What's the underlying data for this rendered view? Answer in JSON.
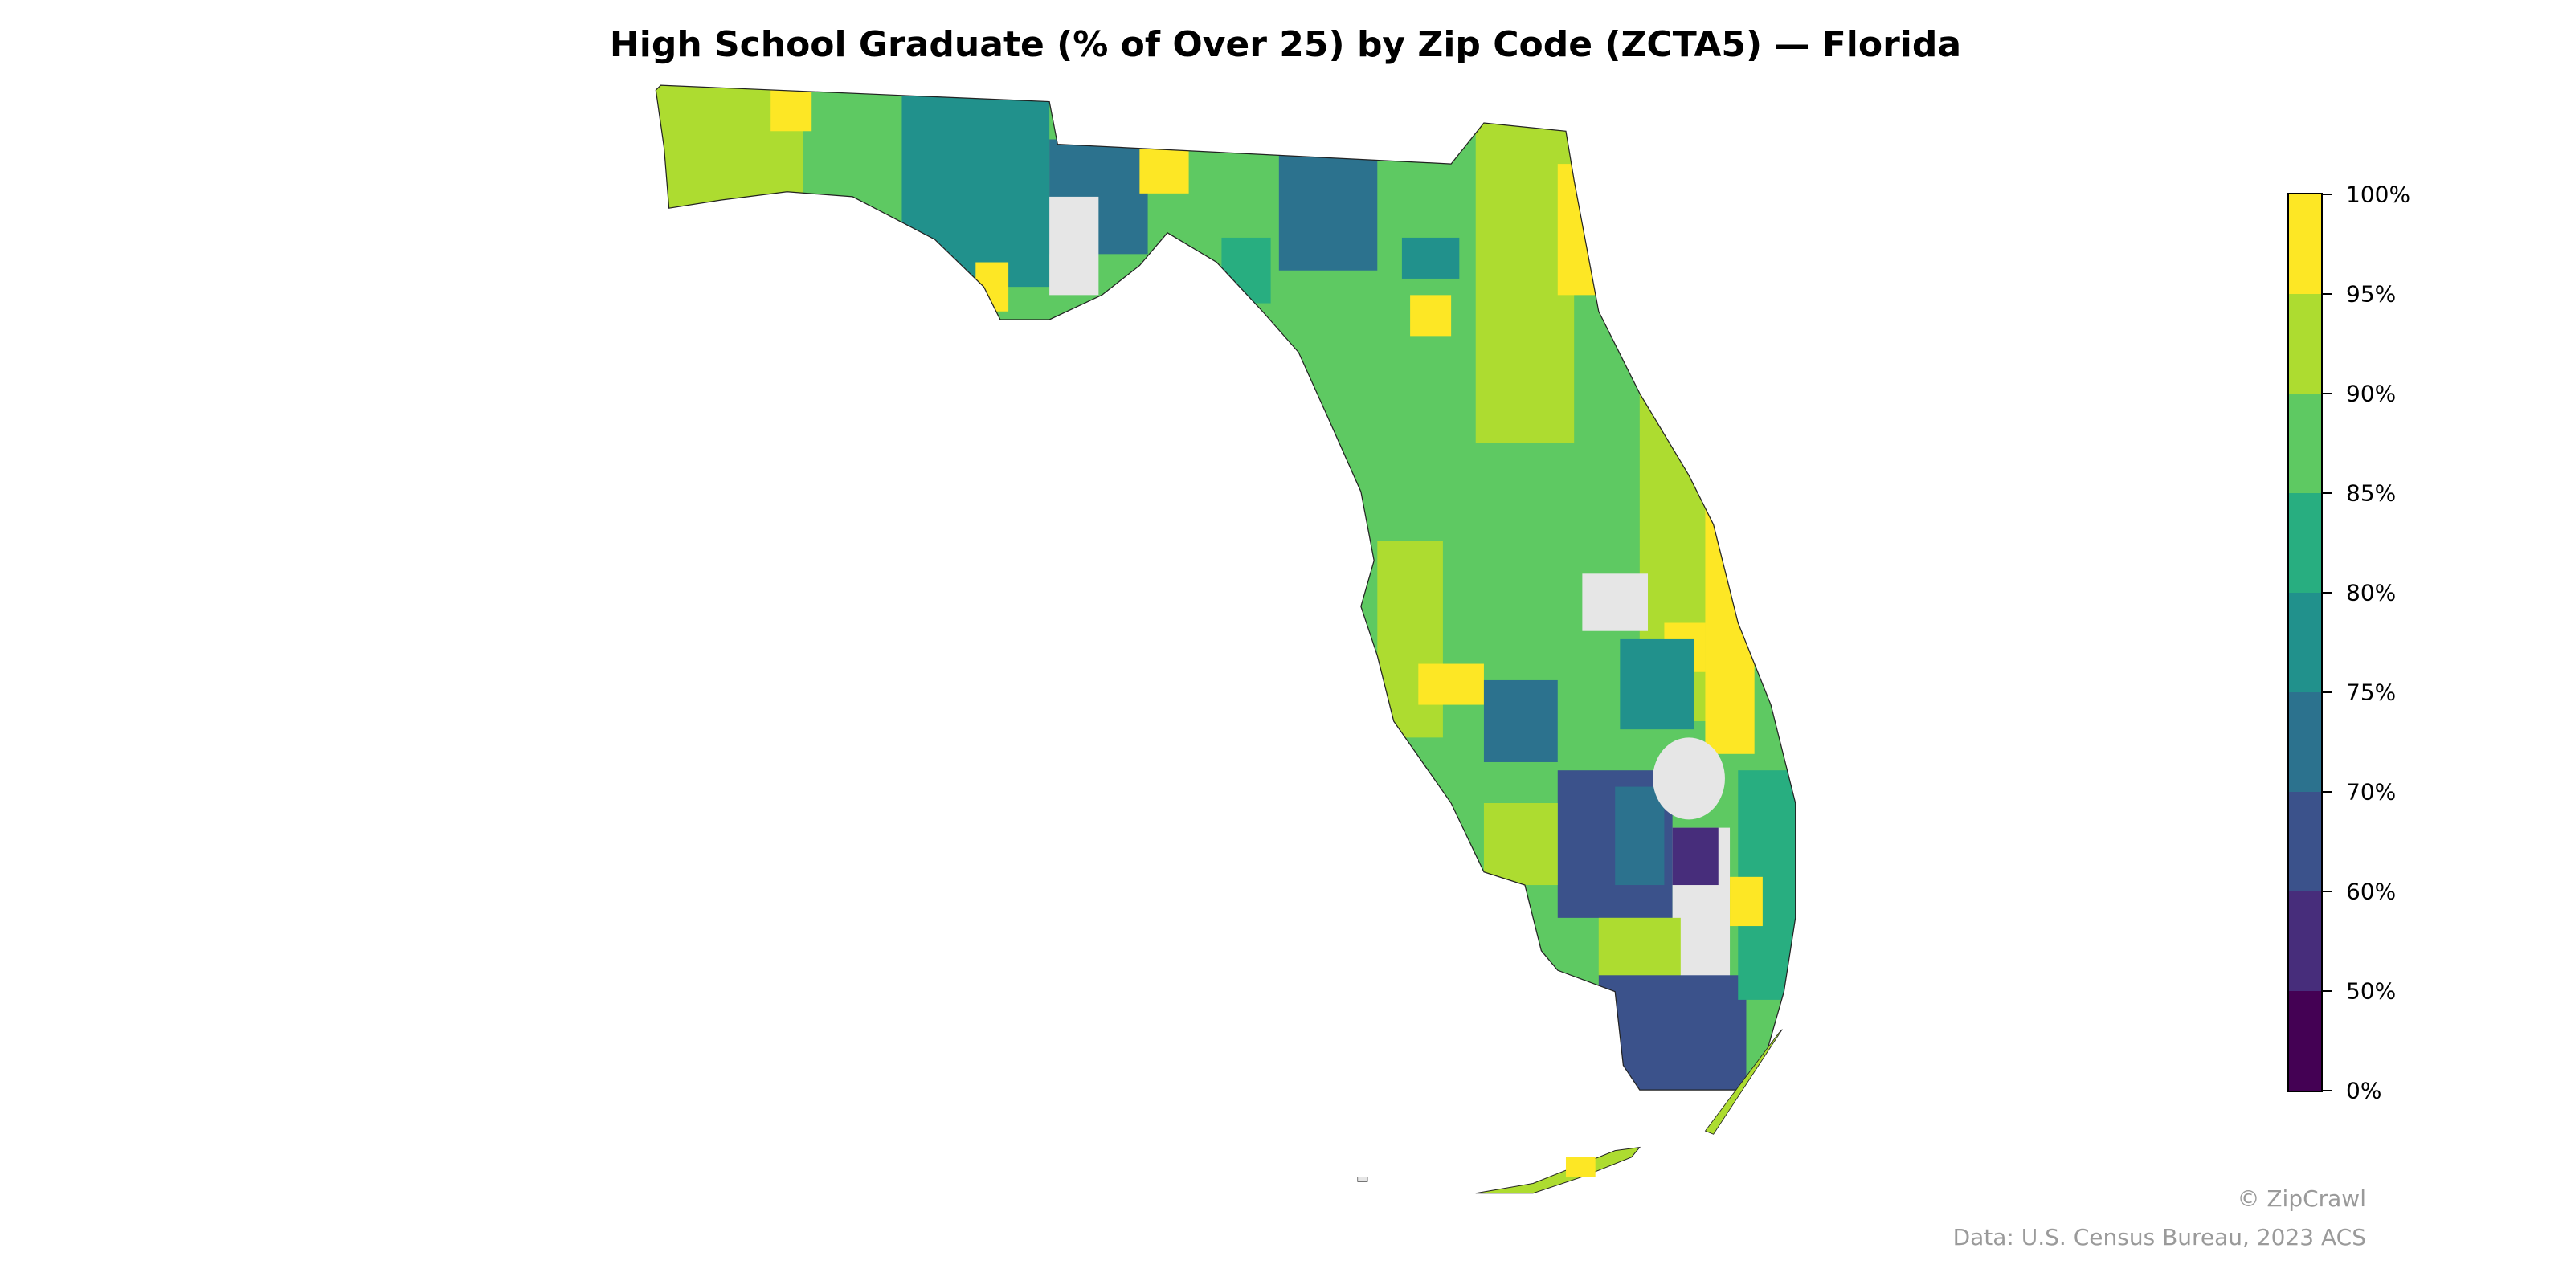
{
  "chart_data": {
    "type": "choropleth",
    "title": "High School Graduate (% of Over 25) by Zip Code (ZCTA5) — Florida",
    "region": "Florida",
    "unit": "%",
    "colorbar": {
      "bins": [
        {
          "from": 0,
          "to": 50,
          "color": "#440154"
        },
        {
          "from": 50,
          "to": 60,
          "color": "#472d7b"
        },
        {
          "from": 60,
          "to": 70,
          "color": "#3b528b"
        },
        {
          "from": 70,
          "to": 75,
          "color": "#2c728e"
        },
        {
          "from": 75,
          "to": 80,
          "color": "#21918c"
        },
        {
          "from": 80,
          "to": 85,
          "color": "#28ae80"
        },
        {
          "from": 85,
          "to": 90,
          "color": "#5ec962"
        },
        {
          "from": 90,
          "to": 95,
          "color": "#addc30"
        },
        {
          "from": 95,
          "to": 100,
          "color": "#fde725"
        }
      ],
      "tick_labels": [
        "0%",
        "50%",
        "60%",
        "70%",
        "75%",
        "80%",
        "85%",
        "90%",
        "95%",
        "100%"
      ],
      "no_data_color": "#e6e6e6"
    }
  },
  "credits": {
    "copyright": "© ZipCrawl",
    "source": "Data: U.S. Census Bureau, 2023 ACS"
  }
}
